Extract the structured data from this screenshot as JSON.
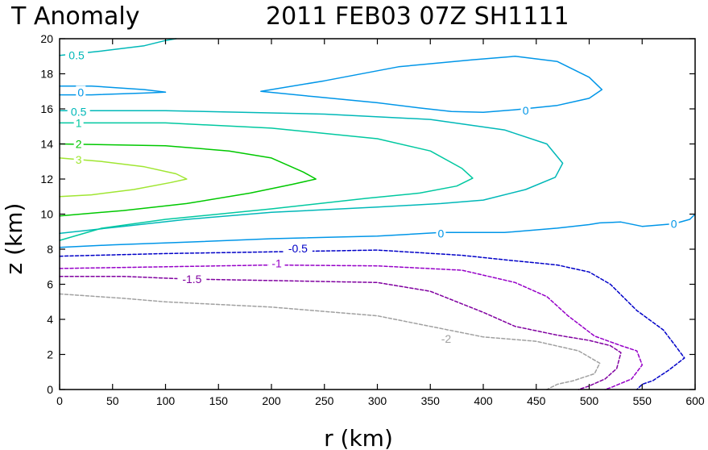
{
  "chart_data": {
    "type": "contour",
    "title_left": "T Anomaly",
    "title_right": "2011 FEB03 07Z   SH1111",
    "xlabel": "r (km)",
    "ylabel": "z (km)",
    "xlim": [
      0,
      600
    ],
    "ylim": [
      0,
      20
    ],
    "x_ticks": [
      "0",
      "50",
      "100",
      "150",
      "200",
      "250",
      "300",
      "350",
      "400",
      "450",
      "500",
      "550",
      "600"
    ],
    "y_ticks": [
      "0",
      "2",
      "4",
      "6",
      "8",
      "10",
      "12",
      "14",
      "16",
      "18",
      "20"
    ],
    "grid": false,
    "contours": [
      {
        "level": "0.5",
        "color": "#00b8b8",
        "dashed": false,
        "points": [
          [
            0,
            19.05
          ],
          [
            40,
            19.3
          ],
          [
            80,
            19.6
          ],
          [
            100,
            19.9
          ],
          [
            110,
            20
          ]
        ]
      },
      {
        "level": "0",
        "color": "#0096e8",
        "dashed": false,
        "points": [
          [
            0,
            17.3
          ],
          [
            30,
            17.3
          ],
          [
            80,
            17.1
          ],
          [
            100,
            16.95
          ],
          [
            80,
            16.9
          ],
          [
            30,
            16.8
          ],
          [
            0,
            16.8
          ]
        ]
      },
      {
        "level": "0",
        "color": "#0096e8",
        "dashed": false,
        "points": [
          [
            190,
            17
          ],
          [
            250,
            17.6
          ],
          [
            320,
            18.4
          ],
          [
            390,
            18.8
          ],
          [
            430,
            19
          ],
          [
            470,
            18.7
          ],
          [
            500,
            17.8
          ],
          [
            512,
            17.1
          ],
          [
            500,
            16.6
          ],
          [
            470,
            16.2
          ],
          [
            430,
            15.95
          ],
          [
            400,
            15.8
          ],
          [
            370,
            15.85
          ],
          [
            340,
            16.05
          ],
          [
            300,
            16.35
          ],
          [
            240,
            16.7
          ],
          [
            190,
            17
          ]
        ]
      },
      {
        "level": "0",
        "color": "#0096e8",
        "dashed": false,
        "points": [
          [
            0,
            8.1
          ],
          [
            50,
            8.25
          ],
          [
            120,
            8.4
          ],
          [
            200,
            8.6
          ],
          [
            300,
            8.75
          ],
          [
            360,
            8.95
          ],
          [
            420,
            8.95
          ],
          [
            470,
            9.2
          ],
          [
            500,
            9.4
          ],
          [
            510,
            9.5
          ],
          [
            530,
            9.55
          ],
          [
            550,
            9.3
          ],
          [
            580,
            9.45
          ],
          [
            595,
            9.7
          ],
          [
            600,
            10
          ]
        ]
      },
      {
        "level": "0.5",
        "color": "#00b8b8",
        "dashed": false,
        "points": [
          [
            0,
            15.9
          ],
          [
            100,
            15.9
          ],
          [
            250,
            15.7
          ],
          [
            350,
            15.4
          ],
          [
            420,
            14.8
          ],
          [
            460,
            14
          ],
          [
            475,
            12.9
          ],
          [
            468,
            12.1
          ],
          [
            440,
            11.4
          ],
          [
            400,
            10.8
          ],
          [
            360,
            10.6
          ],
          [
            300,
            10.4
          ],
          [
            200,
            10.1
          ],
          [
            120,
            9.7
          ],
          [
            60,
            9.3
          ],
          [
            0,
            8.9
          ]
        ]
      },
      {
        "level": "1",
        "color": "#00c8a0",
        "dashed": false,
        "points": [
          [
            0,
            15.2
          ],
          [
            100,
            15.2
          ],
          [
            200,
            14.9
          ],
          [
            300,
            14.3
          ],
          [
            350,
            13.6
          ],
          [
            380,
            12.6
          ],
          [
            390,
            12.05
          ],
          [
            375,
            11.6
          ],
          [
            340,
            11.2
          ],
          [
            290,
            10.9
          ],
          [
            200,
            10.3
          ],
          [
            100,
            9.7
          ],
          [
            40,
            9.2
          ],
          [
            0,
            8.5
          ]
        ]
      },
      {
        "level": "2",
        "color": "#00c800",
        "dashed": false,
        "points": [
          [
            0,
            14
          ],
          [
            100,
            13.9
          ],
          [
            160,
            13.6
          ],
          [
            200,
            13.2
          ],
          [
            230,
            12.4
          ],
          [
            242,
            12
          ],
          [
            220,
            11.7
          ],
          [
            180,
            11.2
          ],
          [
            120,
            10.6
          ],
          [
            60,
            10.2
          ],
          [
            0,
            9.9
          ]
        ]
      },
      {
        "level": "3",
        "color": "#a0e632",
        "dashed": false,
        "points": [
          [
            0,
            13.2
          ],
          [
            40,
            13
          ],
          [
            80,
            12.7
          ],
          [
            110,
            12.3
          ],
          [
            120,
            12
          ],
          [
            105,
            11.8
          ],
          [
            70,
            11.4
          ],
          [
            30,
            11.1
          ],
          [
            0,
            11
          ]
        ]
      },
      {
        "level": "-0.5",
        "color": "#0000c8",
        "dashed": true,
        "points": [
          [
            0,
            7.6
          ],
          [
            100,
            7.75
          ],
          [
            200,
            7.85
          ],
          [
            300,
            7.95
          ],
          [
            380,
            7.65
          ],
          [
            420,
            7.4
          ],
          [
            470,
            7.1
          ],
          [
            500,
            6.7
          ],
          [
            520,
            6
          ],
          [
            545,
            4.5
          ],
          [
            570,
            3.4
          ],
          [
            580,
            2.6
          ],
          [
            590,
            1.8
          ],
          [
            575,
            1.1
          ],
          [
            560,
            0.5
          ],
          [
            550,
            0.3
          ],
          [
            545,
            0
          ]
        ]
      },
      {
        "level": "-1",
        "color": "#9600c8",
        "dashed": true,
        "points": [
          [
            0,
            6.9
          ],
          [
            100,
            7
          ],
          [
            200,
            7.1
          ],
          [
            300,
            7.05
          ],
          [
            380,
            6.8
          ],
          [
            430,
            6.1
          ],
          [
            460,
            5.3
          ],
          [
            480,
            4.2
          ],
          [
            505,
            3.05
          ],
          [
            530,
            2.5
          ],
          [
            545,
            2.2
          ],
          [
            550,
            1.4
          ],
          [
            540,
            0.6
          ],
          [
            520,
            0.1
          ],
          [
            515,
            0
          ]
        ]
      },
      {
        "level": "-1.5",
        "color": "#8000a0",
        "dashed": true,
        "points": [
          [
            0,
            6.45
          ],
          [
            60,
            6.45
          ],
          [
            120,
            6.3
          ],
          [
            210,
            6.2
          ],
          [
            300,
            6.1
          ],
          [
            350,
            5.6
          ],
          [
            400,
            4.4
          ],
          [
            430,
            3.6
          ],
          [
            470,
            3.1
          ],
          [
            500,
            2.8
          ],
          [
            520,
            2.5
          ],
          [
            530,
            2.1
          ],
          [
            526,
            1.2
          ],
          [
            515,
            0.6
          ],
          [
            500,
            0.2
          ],
          [
            490,
            0
          ]
        ]
      },
      {
        "level": "-2",
        "color": "#a0a0a0",
        "dashed": true,
        "points": [
          [
            0,
            5.45
          ],
          [
            60,
            5.2
          ],
          [
            100,
            5
          ],
          [
            200,
            4.7
          ],
          [
            300,
            4.2
          ],
          [
            350,
            3.6
          ],
          [
            400,
            3
          ],
          [
            450,
            2.75
          ],
          [
            490,
            2.2
          ],
          [
            510,
            1.5
          ],
          [
            505,
            0.9
          ],
          [
            485,
            0.5
          ],
          [
            470,
            0.3
          ],
          [
            460,
            0
          ]
        ]
      }
    ],
    "labels": [
      {
        "text": "0.5",
        "x": 16,
        "y": 19.05,
        "color": "#00b8b8"
      },
      {
        "text": "0",
        "x": 20,
        "y": 16.95,
        "color": "#0096e8"
      },
      {
        "text": "0",
        "x": 440,
        "y": 15.9,
        "color": "#0096e8"
      },
      {
        "text": "0.5",
        "x": 18,
        "y": 15.85,
        "color": "#00b8b8"
      },
      {
        "text": "1",
        "x": 18,
        "y": 15.2,
        "color": "#00c8a0"
      },
      {
        "text": "2",
        "x": 18,
        "y": 14,
        "color": "#00c800"
      },
      {
        "text": "3",
        "x": 18,
        "y": 13.1,
        "color": "#a0e632"
      },
      {
        "text": "0",
        "x": 360,
        "y": 8.9,
        "color": "#0096e8"
      },
      {
        "text": "0",
        "x": 580,
        "y": 9.45,
        "color": "#0096e8"
      },
      {
        "text": "-0.5",
        "x": 225,
        "y": 8.05,
        "color": "#0000c8"
      },
      {
        "text": "-1",
        "x": 205,
        "y": 7.2,
        "color": "#9600c8"
      },
      {
        "text": "-1.5",
        "x": 125,
        "y": 6.3,
        "color": "#8000a0"
      },
      {
        "text": "-2",
        "x": 365,
        "y": 2.9,
        "color": "#a0a0a0"
      }
    ]
  }
}
